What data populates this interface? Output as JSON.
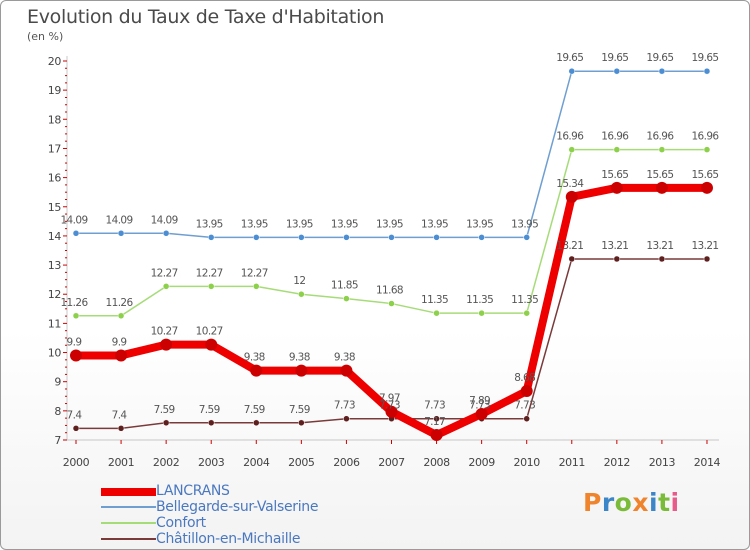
{
  "title": "Evolution du Taux de Taxe d'Habitation",
  "unit_label": "(en %)",
  "logo_text": "Proxiti",
  "logo_colors": [
    "#f0842c",
    "#3a86c8",
    "#7bbb3a",
    "#f0842c",
    "#3a86c8",
    "#7bbb3a",
    "#e85a8a"
  ],
  "chart_data": {
    "type": "line",
    "x": [
      "2000",
      "2001",
      "2002",
      "2003",
      "2004",
      "2005",
      "2006",
      "2007",
      "2008",
      "2009",
      "2010",
      "2011",
      "2012",
      "2013",
      "2014"
    ],
    "ylim": [
      7,
      20
    ],
    "yticks": [
      7,
      8,
      9,
      10,
      11,
      12,
      13,
      14,
      15,
      16,
      17,
      18,
      19,
      20
    ],
    "grid": false,
    "legend_position": "bottom-left",
    "series": [
      {
        "name": "LANCRANS",
        "color": "#ee0000",
        "dot_color": "#cc0000",
        "width": 8,
        "values": [
          9.9,
          9.9,
          10.27,
          10.27,
          9.38,
          9.38,
          9.38,
          7.97,
          7.17,
          7.89,
          8.68,
          15.34,
          15.65,
          15.65,
          15.65
        ],
        "labels": [
          "9.9",
          "9.9",
          "10.27",
          "10.27",
          "9.38",
          "9.38",
          "9.38",
          "7.97",
          "7.17",
          "7.89",
          "8.68",
          "15.34",
          "15.65",
          "15.65",
          "15.65"
        ]
      },
      {
        "name": "Bellegarde-sur-Valserine",
        "color": "#6f9fd0",
        "dot_color": "#4c8ed4",
        "width": 1.5,
        "values": [
          14.09,
          14.09,
          14.09,
          13.95,
          13.95,
          13.95,
          13.95,
          13.95,
          13.95,
          13.95,
          13.95,
          19.65,
          19.65,
          19.65,
          19.65
        ],
        "labels": [
          "14.09",
          "14.09",
          "14.09",
          "13.95",
          "13.95",
          "13.95",
          "13.95",
          "13.95",
          "13.95",
          "13.95",
          "13.95",
          "19.65",
          "19.65",
          "19.65",
          "19.65"
        ]
      },
      {
        "name": "Confort",
        "color": "#a6dc78",
        "dot_color": "#8dd04a",
        "width": 1.5,
        "values": [
          11.26,
          11.26,
          12.27,
          12.27,
          12.27,
          12,
          11.85,
          11.68,
          11.35,
          11.35,
          11.35,
          16.96,
          16.96,
          16.96,
          16.96
        ],
        "labels": [
          "11.26",
          "11.26",
          "12.27",
          "12.27",
          "12.27",
          "12",
          "11.85",
          "11.68",
          "11.35",
          "11.35",
          "11.35",
          "16.96",
          "16.96",
          "16.96",
          "16.96"
        ]
      },
      {
        "name": "Châtillon-en-Michaille",
        "color": "#7a3a3a",
        "dot_color": "#5e1f1f",
        "width": 1.5,
        "values": [
          7.4,
          7.4,
          7.59,
          7.59,
          7.59,
          7.59,
          7.73,
          7.73,
          7.73,
          7.73,
          7.73,
          13.21,
          13.21,
          13.21,
          13.21
        ],
        "labels": [
          "7.4",
          "7.4",
          "7.59",
          "7.59",
          "7.59",
          "7.59",
          "7.73",
          "7.73",
          "7.73",
          "7.73",
          "7.73",
          "13.21",
          "13.21",
          "13.21",
          "13.21"
        ]
      }
    ]
  }
}
